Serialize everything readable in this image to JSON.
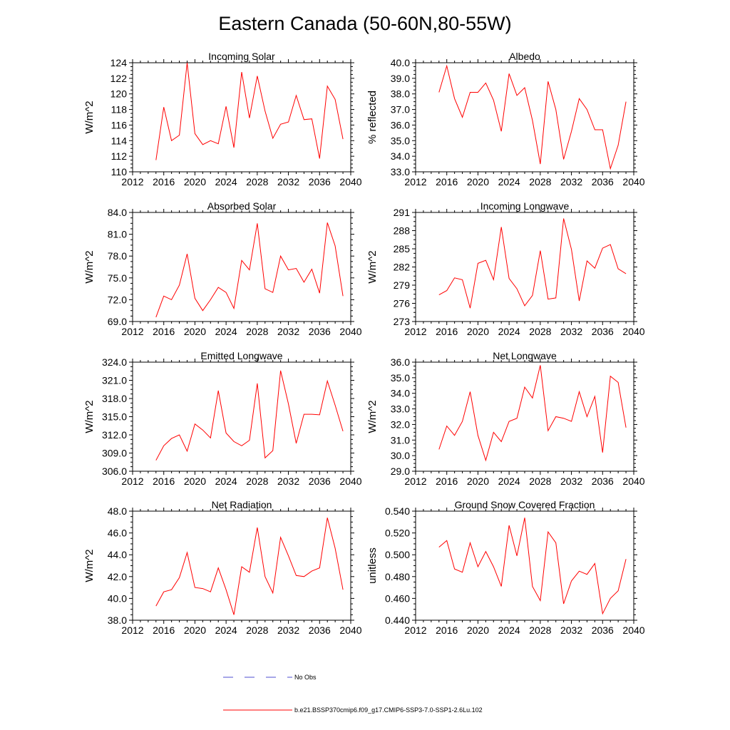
{
  "figure_title": "Eastern Canada (50-60N,80-55W)",
  "colors": {
    "series": "#ff0000",
    "obs": "#4f4fd0",
    "axis": "#000000"
  },
  "legend": [
    {
      "label": "No Obs",
      "style": "dashed",
      "color": "#4f4fd0"
    },
    {
      "label": "b.e21.BSSP370cmip6.f09_g17.CMIP6-SSP3-7.0-SSP1-2.6Lu.102",
      "style": "solid",
      "color": "#ff0000"
    }
  ],
  "chart_data": [
    {
      "type": "line",
      "title": "Incoming Solar",
      "ylabel": "W/m^2",
      "xlim": [
        2012,
        2040
      ],
      "ylim": [
        110,
        124
      ],
      "xticks": [
        2012,
        2016,
        2020,
        2024,
        2028,
        2032,
        2036,
        2040
      ],
      "yticks": [
        110,
        112,
        114,
        116,
        118,
        120,
        122,
        124
      ],
      "ytick_labels": [
        "110",
        "112",
        "114",
        "116",
        "118",
        "120",
        "122",
        "124"
      ],
      "grid": false,
      "x": [
        2015,
        2016,
        2017,
        2018,
        2019,
        2020,
        2021,
        2022,
        2023,
        2024,
        2025,
        2026,
        2027,
        2028,
        2029,
        2030,
        2031,
        2032,
        2033,
        2034,
        2035,
        2036,
        2037,
        2038,
        2039
      ],
      "series": [
        {
          "values": [
            111.5,
            118.3,
            114.0,
            114.7,
            124.0,
            114.9,
            113.5,
            114.0,
            113.6,
            118.4,
            113.1,
            122.8,
            116.9,
            122.3,
            117.8,
            114.3,
            116.1,
            116.4,
            119.8,
            116.7,
            116.8,
            111.7,
            121.0,
            119.3,
            114.2
          ]
        }
      ]
    },
    {
      "type": "line",
      "title": "Albedo",
      "ylabel": "% reflected",
      "xlim": [
        2012,
        2040
      ],
      "ylim": [
        33.0,
        40.0
      ],
      "xticks": [
        2012,
        2016,
        2020,
        2024,
        2028,
        2032,
        2036,
        2040
      ],
      "yticks": [
        33,
        34,
        35,
        36,
        37,
        38,
        39,
        40
      ],
      "ytick_labels": [
        "33.0",
        "34.0",
        "35.0",
        "36.0",
        "37.0",
        "38.0",
        "39.0",
        "40.0"
      ],
      "grid": false,
      "x": [
        2015,
        2016,
        2017,
        2018,
        2019,
        2020,
        2021,
        2022,
        2023,
        2024,
        2025,
        2026,
        2027,
        2028,
        2029,
        2030,
        2031,
        2032,
        2033,
        2034,
        2035,
        2036,
        2037,
        2038,
        2039
      ],
      "series": [
        {
          "values": [
            38.1,
            39.8,
            37.7,
            36.5,
            38.1,
            38.1,
            38.7,
            37.6,
            35.6,
            39.3,
            37.9,
            38.4,
            36.3,
            33.5,
            38.8,
            37.0,
            33.8,
            35.6,
            37.7,
            37.0,
            35.7,
            35.7,
            33.2,
            34.7,
            37.5
          ]
        }
      ]
    },
    {
      "type": "line",
      "title": "Absorbed Solar",
      "ylabel": "W/m^2",
      "xlim": [
        2012,
        2040
      ],
      "ylim": [
        69.0,
        84.0
      ],
      "xticks": [
        2012,
        2016,
        2020,
        2024,
        2028,
        2032,
        2036,
        2040
      ],
      "yticks": [
        69,
        72,
        75,
        78,
        81,
        84
      ],
      "ytick_labels": [
        "69.0",
        "72.0",
        "75.0",
        "78.0",
        "81.0",
        "84.0"
      ],
      "grid": false,
      "x": [
        2015,
        2016,
        2017,
        2018,
        2019,
        2020,
        2021,
        2022,
        2023,
        2024,
        2025,
        2026,
        2027,
        2028,
        2029,
        2030,
        2031,
        2032,
        2033,
        2034,
        2035,
        2036,
        2037,
        2038,
        2039
      ],
      "series": [
        {
          "values": [
            69.6,
            72.5,
            72.0,
            74.0,
            78.3,
            72.2,
            70.5,
            72.0,
            73.7,
            73.0,
            70.8,
            77.4,
            76.1,
            82.5,
            73.5,
            73.0,
            78.0,
            76.1,
            76.3,
            74.4,
            76.2,
            72.9,
            82.6,
            79.4,
            72.5
          ]
        }
      ]
    },
    {
      "type": "line",
      "title": "Incoming Longwave",
      "ylabel": "W/m^2",
      "xlim": [
        2012,
        2040
      ],
      "ylim": [
        273,
        291
      ],
      "xticks": [
        2012,
        2016,
        2020,
        2024,
        2028,
        2032,
        2036,
        2040
      ],
      "yticks": [
        273,
        276,
        279,
        282,
        285,
        288,
        291
      ],
      "ytick_labels": [
        "273",
        "276",
        "279",
        "282",
        "285",
        "288",
        "291"
      ],
      "grid": false,
      "x": [
        2015,
        2016,
        2017,
        2018,
        2019,
        2020,
        2021,
        2022,
        2023,
        2024,
        2025,
        2026,
        2027,
        2028,
        2029,
        2030,
        2031,
        2032,
        2033,
        2034,
        2035,
        2036,
        2037,
        2038,
        2039
      ],
      "series": [
        {
          "values": [
            277.4,
            278.1,
            280.2,
            279.9,
            275.2,
            282.6,
            283.1,
            279.9,
            288.6,
            280.1,
            278.4,
            275.6,
            277.3,
            284.7,
            276.7,
            276.9,
            290.0,
            284.9,
            276.4,
            283.0,
            281.8,
            285.1,
            285.7,
            281.7,
            280.9
          ]
        }
      ]
    },
    {
      "type": "line",
      "title": "Emitted Longwave",
      "ylabel": "W/m^2",
      "xlim": [
        2012,
        2040
      ],
      "ylim": [
        306.0,
        324.0
      ],
      "xticks": [
        2012,
        2016,
        2020,
        2024,
        2028,
        2032,
        2036,
        2040
      ],
      "yticks": [
        306,
        309,
        312,
        315,
        318,
        321,
        324
      ],
      "ytick_labels": [
        "306.0",
        "309.0",
        "312.0",
        "315.0",
        "318.0",
        "321.0",
        "324.0"
      ],
      "grid": false,
      "x": [
        2015,
        2016,
        2017,
        2018,
        2019,
        2020,
        2021,
        2022,
        2023,
        2024,
        2025,
        2026,
        2027,
        2028,
        2029,
        2030,
        2031,
        2032,
        2033,
        2034,
        2035,
        2036,
        2037,
        2038,
        2039
      ],
      "series": [
        {
          "values": [
            307.8,
            310.2,
            311.4,
            312.0,
            309.3,
            313.8,
            312.8,
            311.5,
            319.3,
            312.3,
            310.9,
            310.2,
            311.1,
            320.5,
            308.2,
            309.4,
            322.6,
            317.1,
            310.6,
            315.4,
            315.4,
            315.3,
            320.9,
            316.9,
            312.6
          ]
        }
      ]
    },
    {
      "type": "line",
      "title": "Net Longwave",
      "ylabel": "W/m^2",
      "xlim": [
        2012,
        2040
      ],
      "ylim": [
        29.0,
        36.0
      ],
      "xticks": [
        2012,
        2016,
        2020,
        2024,
        2028,
        2032,
        2036,
        2040
      ],
      "yticks": [
        29,
        30,
        31,
        32,
        33,
        34,
        35,
        36
      ],
      "ytick_labels": [
        "29.0",
        "30.0",
        "31.0",
        "32.0",
        "33.0",
        "34.0",
        "35.0",
        "36.0"
      ],
      "grid": false,
      "x": [
        2015,
        2016,
        2017,
        2018,
        2019,
        2020,
        2021,
        2022,
        2023,
        2024,
        2025,
        2026,
        2027,
        2028,
        2029,
        2030,
        2031,
        2032,
        2033,
        2034,
        2035,
        2036,
        2037,
        2038,
        2039
      ],
      "series": [
        {
          "values": [
            30.4,
            31.9,
            31.3,
            32.2,
            34.1,
            31.3,
            29.7,
            31.5,
            30.9,
            32.2,
            32.4,
            34.4,
            33.7,
            35.8,
            31.6,
            32.5,
            32.4,
            32.2,
            34.1,
            32.5,
            33.8,
            30.2,
            35.1,
            34.7,
            31.8
          ]
        }
      ]
    },
    {
      "type": "line",
      "title": "Net Radiation",
      "ylabel": "W/m^2",
      "xlim": [
        2012,
        2040
      ],
      "ylim": [
        38.0,
        48.0
      ],
      "xticks": [
        2012,
        2016,
        2020,
        2024,
        2028,
        2032,
        2036,
        2040
      ],
      "yticks": [
        38,
        40,
        42,
        44,
        46,
        48
      ],
      "ytick_labels": [
        "38.0",
        "40.0",
        "42.0",
        "44.0",
        "46.0",
        "48.0"
      ],
      "grid": false,
      "x": [
        2015,
        2016,
        2017,
        2018,
        2019,
        2020,
        2021,
        2022,
        2023,
        2024,
        2025,
        2026,
        2027,
        2028,
        2029,
        2030,
        2031,
        2032,
        2033,
        2034,
        2035,
        2036,
        2037,
        2038,
        2039
      ],
      "series": [
        {
          "values": [
            39.3,
            40.6,
            40.8,
            41.9,
            44.2,
            41.0,
            40.9,
            40.6,
            42.8,
            40.8,
            38.5,
            42.9,
            42.4,
            46.5,
            42.0,
            40.5,
            45.6,
            43.9,
            42.1,
            42.0,
            42.5,
            42.8,
            47.4,
            44.6,
            40.8
          ]
        }
      ]
    },
    {
      "type": "line",
      "title": "Ground Snow Covered Fraction",
      "ylabel": "unitless",
      "xlim": [
        2012,
        2040
      ],
      "ylim": [
        0.44,
        0.54
      ],
      "xticks": [
        2012,
        2016,
        2020,
        2024,
        2028,
        2032,
        2036,
        2040
      ],
      "yticks": [
        0.44,
        0.46,
        0.48,
        0.5,
        0.52,
        0.54
      ],
      "ytick_labels": [
        "0.440",
        "0.460",
        "0.480",
        "0.500",
        "0.520",
        "0.540"
      ],
      "grid": false,
      "x": [
        2015,
        2016,
        2017,
        2018,
        2019,
        2020,
        2021,
        2022,
        2023,
        2024,
        2025,
        2026,
        2027,
        2028,
        2029,
        2030,
        2031,
        2032,
        2033,
        2034,
        2035,
        2036,
        2037,
        2038,
        2039
      ],
      "series": [
        {
          "values": [
            0.507,
            0.513,
            0.487,
            0.484,
            0.511,
            0.489,
            0.503,
            0.489,
            0.471,
            0.527,
            0.499,
            0.534,
            0.471,
            0.458,
            0.521,
            0.511,
            0.455,
            0.476,
            0.485,
            0.482,
            0.492,
            0.446,
            0.46,
            0.467,
            0.496
          ]
        }
      ]
    }
  ]
}
